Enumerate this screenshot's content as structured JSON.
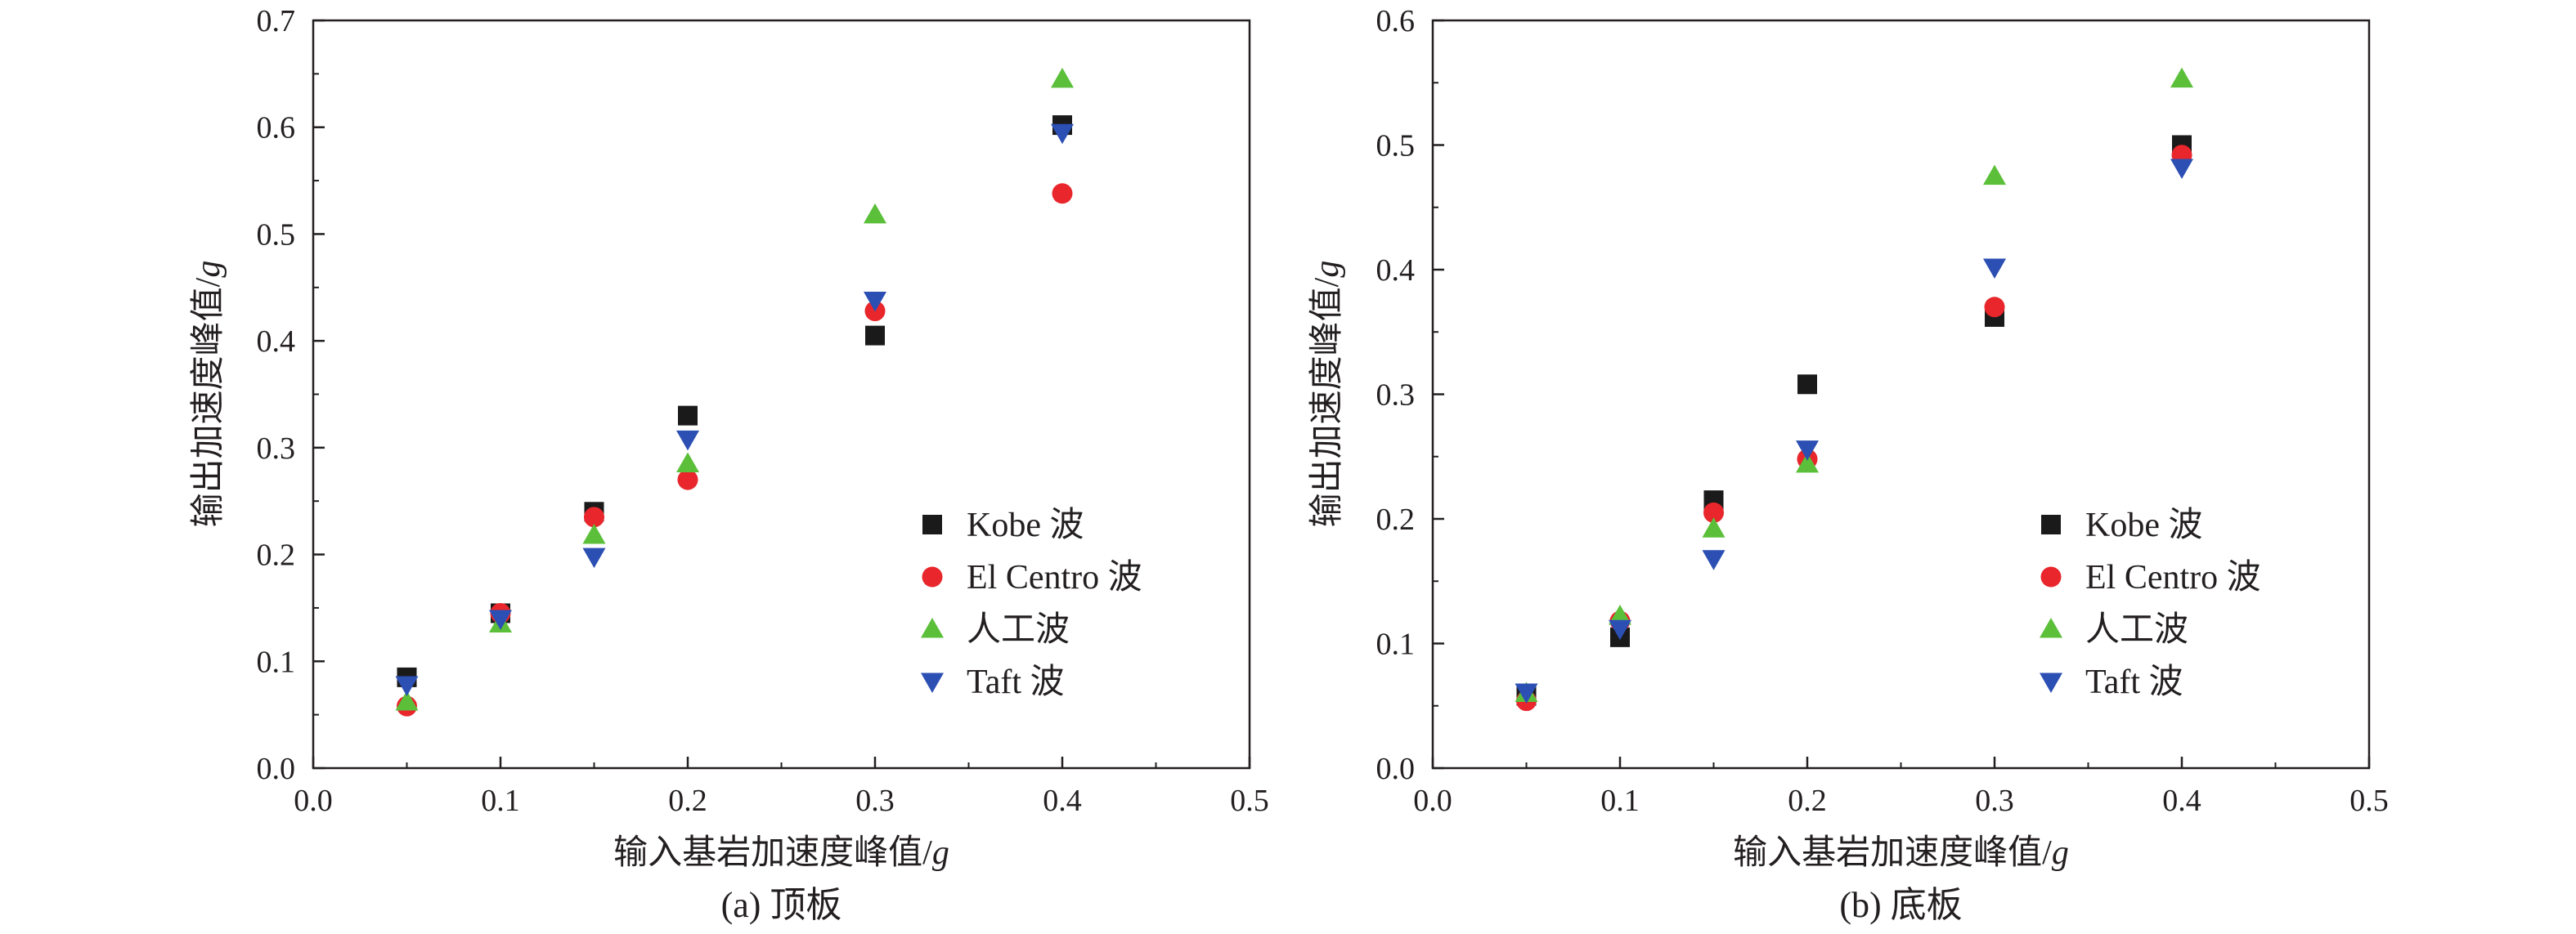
{
  "colors": {
    "Kobe": "#1a1a1a",
    "ElCentro": "#e8262c",
    "Artificial": "#5bbf3a",
    "Taft": "#2b4fb3",
    "axis": "#231f20"
  },
  "chart_data": [
    {
      "type": "scatter",
      "caption": "(a) 顶板",
      "xlabel_main": "输入基岩加速度峰值/",
      "xlabel_unit": "g",
      "ylabel_main": "输出加速度峰值/",
      "ylabel_unit": "g",
      "xlim": [
        0.0,
        0.5
      ],
      "ylim": [
        0.0,
        0.7
      ],
      "xticks": [
        "0.0",
        "0.1",
        "0.2",
        "0.3",
        "0.4",
        "0.5"
      ],
      "yticks": [
        "0.0",
        "0.1",
        "0.2",
        "0.3",
        "0.4",
        "0.5",
        "0.6",
        "0.7"
      ],
      "legend_position": "right-middle",
      "x": [
        0.05,
        0.1,
        0.15,
        0.2,
        0.3,
        0.4
      ],
      "series": [
        {
          "name": "Kobe 波",
          "marker": "square",
          "values": [
            0.085,
            0.145,
            0.24,
            0.33,
            0.405,
            0.602
          ]
        },
        {
          "name": "El Centro 波",
          "marker": "circle",
          "values": [
            0.058,
            0.145,
            0.235,
            0.27,
            0.428,
            0.538
          ]
        },
        {
          "name": "人工波",
          "marker": "triangle-up",
          "values": [
            0.062,
            0.135,
            0.218,
            0.285,
            0.518,
            0.645
          ]
        },
        {
          "name": "Taft 波",
          "marker": "triangle-down",
          "values": [
            0.078,
            0.14,
            0.198,
            0.308,
            0.438,
            0.595
          ]
        }
      ]
    },
    {
      "type": "scatter",
      "caption": "(b) 底板",
      "xlabel_main": "输入基岩加速度峰值/",
      "xlabel_unit": "g",
      "ylabel_main": "输出加速度峰值/",
      "ylabel_unit": "g",
      "xlim": [
        0.0,
        0.5
      ],
      "ylim": [
        0.0,
        0.6
      ],
      "xticks": [
        "0.0",
        "0.1",
        "0.2",
        "0.3",
        "0.4",
        "0.5"
      ],
      "yticks": [
        "0.0",
        "0.1",
        "0.2",
        "0.3",
        "0.4",
        "0.5",
        "0.6"
      ],
      "legend_position": "right-middle",
      "x": [
        0.05,
        0.1,
        0.15,
        0.2,
        0.3,
        0.4
      ],
      "series": [
        {
          "name": "Kobe 波",
          "marker": "square",
          "values": [
            0.058,
            0.105,
            0.215,
            0.308,
            0.362,
            0.5
          ]
        },
        {
          "name": "El Centro 波",
          "marker": "circle",
          "values": [
            0.054,
            0.118,
            0.205,
            0.248,
            0.37,
            0.492
          ]
        },
        {
          "name": "人工波",
          "marker": "triangle-up",
          "values": [
            0.06,
            0.122,
            0.192,
            0.244,
            0.475,
            0.553
          ]
        },
        {
          "name": "Taft 波",
          "marker": "triangle-down",
          "values": [
            0.061,
            0.112,
            0.168,
            0.256,
            0.402,
            0.482
          ]
        }
      ]
    }
  ]
}
